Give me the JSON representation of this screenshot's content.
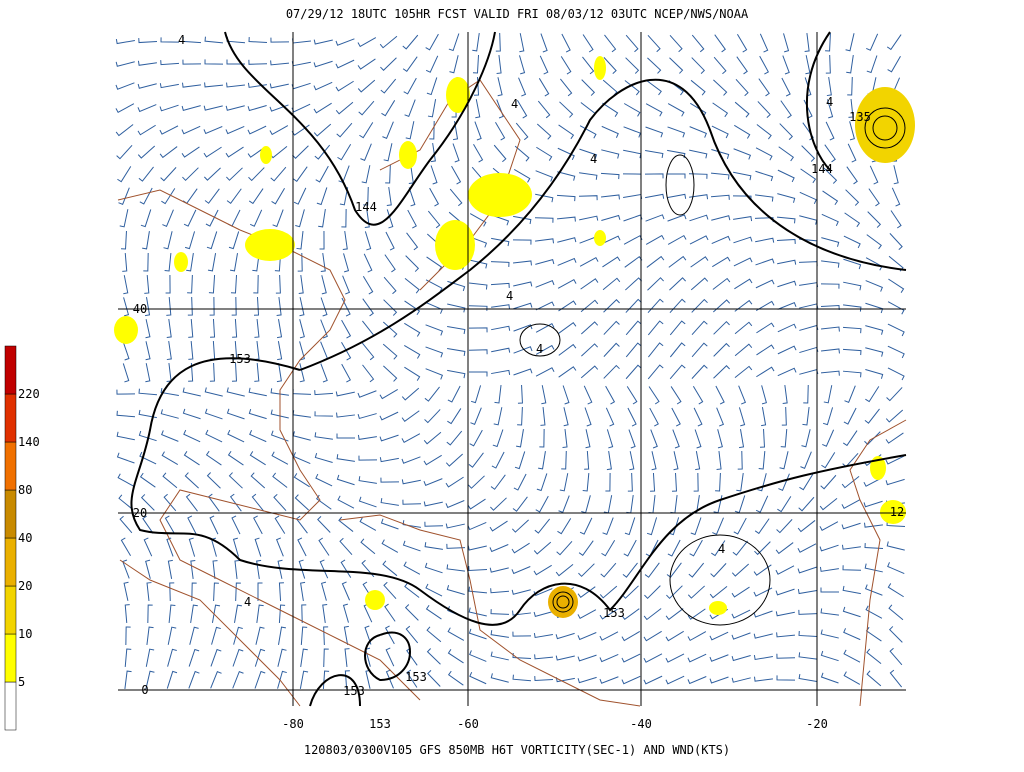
{
  "header": {
    "title": "07/29/12 18UTC  105HR  FCST VALID FRI 08/03/12 03UTC  NCEP/NWS/NOAA"
  },
  "footer": {
    "caption": "120803/0300V105 GFS 850MB H6T VORTICITY(SEC-1) AND WND(KTS)"
  },
  "legend": {
    "labels": [
      "5",
      "10",
      "20",
      "40",
      "80",
      "140",
      "220"
    ],
    "colors": [
      "#ffffff",
      "#ffff00",
      "#f2d400",
      "#eab000",
      "#c88a00",
      "#f07000",
      "#e03000",
      "#c00000"
    ]
  },
  "map": {
    "lat_labels": [
      "40",
      "20",
      "0"
    ],
    "lon_labels": [
      "-80",
      "-60",
      "-40",
      "-20"
    ],
    "contour_labels": [
      "144",
      "153",
      "153",
      "153",
      "153",
      "153",
      "135",
      "144",
      "12",
      "4",
      "4",
      "4",
      "4",
      "4",
      "4",
      "4",
      "4"
    ]
  }
}
